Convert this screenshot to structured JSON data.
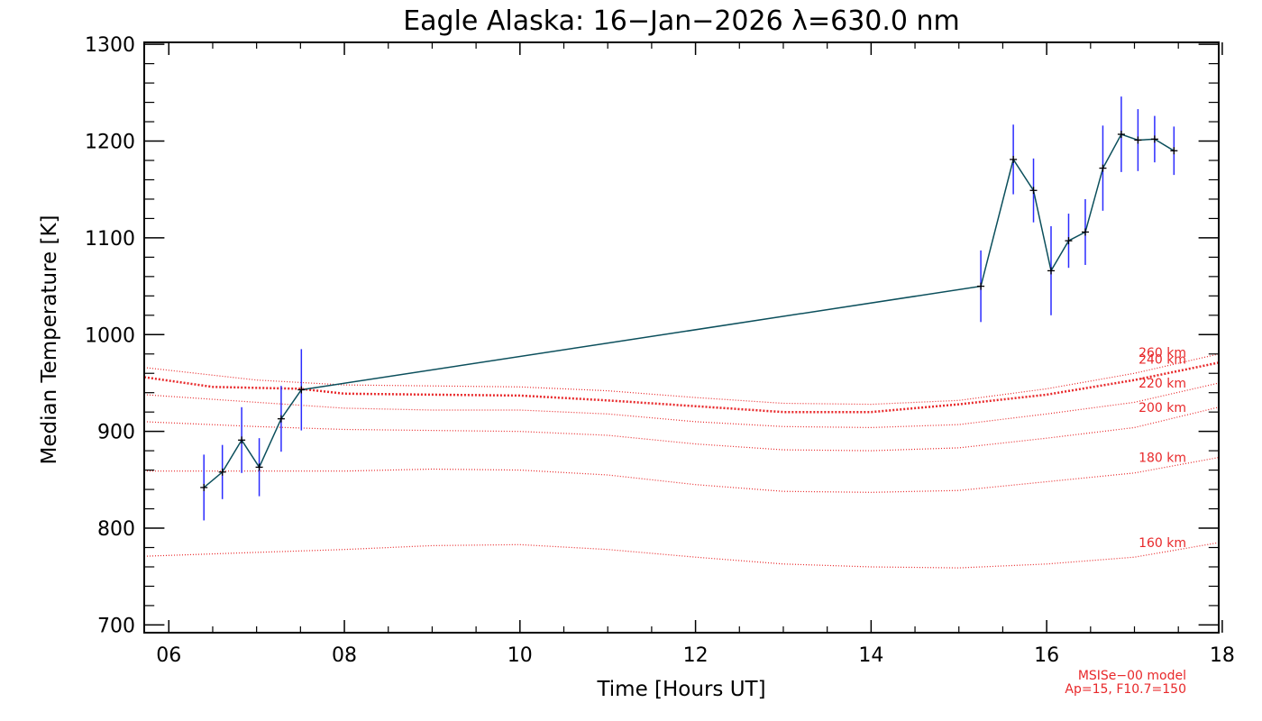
{
  "chart_data": {
    "type": "line",
    "title": "Eagle Alaska: 16−Jan−2026 λ=630.0 nm",
    "xlabel": "Time [Hours UT]",
    "ylabel": "Median Temperature [K]",
    "xlim": [
      5.72,
      17.96
    ],
    "ylim": [
      692,
      1302
    ],
    "x_ticks": [
      6,
      8,
      10,
      12,
      14,
      16,
      18
    ],
    "x_tick_labels": [
      "06",
      "08",
      "10",
      "12",
      "14",
      "16",
      "18"
    ],
    "y_ticks": [
      700,
      800,
      900,
      1000,
      1100,
      1200,
      1300
    ],
    "y_tick_labels": [
      "700",
      "800",
      "900",
      "1000",
      "1100",
      "1200",
      "1300"
    ],
    "colors": {
      "data_line": "#0b4f5c",
      "marker": "#000000",
      "error_bar": "#2b2bff",
      "model": "#e8282a"
    },
    "series": [
      {
        "name": "Median Temperature",
        "x": [
          6.4,
          6.61,
          6.83,
          7.03,
          7.28,
          7.51,
          15.25,
          15.62,
          15.85,
          16.05,
          16.25,
          16.44,
          16.64,
          16.85,
          17.04,
          17.23,
          17.45
        ],
        "y": [
          842,
          858,
          891,
          863,
          913,
          943,
          1050,
          1181,
          1149,
          1066,
          1097,
          1106,
          1172,
          1207,
          1201,
          1202,
          1190
        ],
        "err": [
          34,
          28,
          34,
          30,
          34,
          42,
          37,
          36,
          33,
          46,
          28,
          34,
          44,
          39,
          32,
          24,
          25
        ]
      }
    ],
    "model_curves": [
      {
        "label": "160 km",
        "x": [
          5.72,
          7,
          8,
          9,
          10,
          11,
          12,
          13,
          14,
          15,
          16,
          17,
          17.96
        ],
        "y": [
          771,
          775,
          778,
          782,
          783,
          778,
          770,
          763,
          760,
          759,
          763,
          770,
          785
        ]
      },
      {
        "label": "180 km",
        "x": [
          5.72,
          7,
          8,
          9,
          10,
          11,
          12,
          13,
          14,
          15,
          16,
          17,
          17.96
        ],
        "y": [
          859,
          859,
          859,
          861,
          860,
          855,
          845,
          838,
          837,
          839,
          848,
          857,
          873
        ]
      },
      {
        "label": "200 km",
        "x": [
          5.72,
          7,
          8,
          9,
          10,
          11,
          12,
          13,
          14,
          15,
          16,
          17,
          17.96
        ],
        "y": [
          910,
          905,
          902,
          901,
          900,
          896,
          887,
          881,
          880,
          883,
          893,
          904,
          925
        ]
      },
      {
        "label": "220 km",
        "x": [
          5.72,
          7,
          8,
          9,
          10,
          11,
          12,
          13,
          14,
          15,
          16,
          17,
          17.96
        ],
        "y": [
          938,
          930,
          924,
          922,
          922,
          918,
          910,
          905,
          904,
          907,
          918,
          930,
          950
        ]
      },
      {
        "label": "240 km",
        "x": [
          5.72,
          6.5,
          7.5,
          8,
          9,
          10,
          11,
          12,
          13,
          14,
          15,
          16,
          17,
          17.96
        ],
        "y": [
          956,
          946,
          944,
          939,
          938,
          937,
          932,
          926,
          920,
          920,
          928,
          938,
          953,
          971
        ]
      },
      {
        "label": "260 km",
        "x": [
          5.72,
          7,
          8,
          9,
          10,
          11,
          12,
          13,
          14,
          15,
          16,
          17,
          17.96
        ],
        "y": [
          966,
          953,
          948,
          947,
          946,
          942,
          935,
          929,
          928,
          932,
          944,
          960,
          980
        ]
      }
    ],
    "model_note_line1": "MSISe−00 model",
    "model_note_line2": "Ap=15, F10.7=150"
  }
}
